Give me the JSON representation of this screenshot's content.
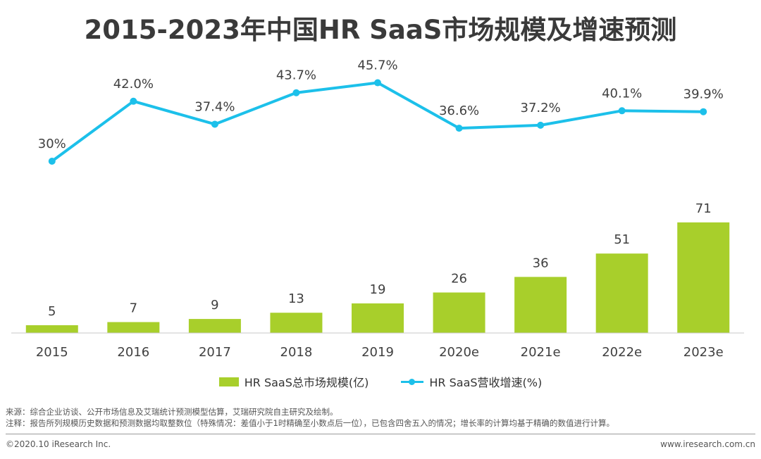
{
  "title": "2015-2023年中国HR SaaS市场规模及增速预测",
  "chart_data": {
    "type": "bar+line",
    "title": "2015-2023年中国HR SaaS市场规模及增速预测",
    "categories": [
      "2015",
      "2016",
      "2017",
      "2018",
      "2019",
      "2020e",
      "2021e",
      "2022e",
      "2023e"
    ],
    "series": [
      {
        "name": "HR SaaS总市场规模(亿)",
        "type": "bar",
        "values": [
          5,
          7,
          9,
          13,
          19,
          26,
          36,
          51,
          71
        ],
        "labels": [
          "5",
          "7",
          "9",
          "13",
          "19",
          "26",
          "36",
          "51",
          "71"
        ],
        "color": "#a8cf2b"
      },
      {
        "name": "HR SaaS营收增速(%)",
        "type": "line",
        "values": [
          30.0,
          42.0,
          37.4,
          43.7,
          45.7,
          36.6,
          37.2,
          40.1,
          39.9
        ],
        "labels": [
          "30%",
          "42.0%",
          "37.4%",
          "43.7%",
          "45.7%",
          "36.6%",
          "37.2%",
          "40.1%",
          "39.9%"
        ],
        "color": "#1cc0ea"
      }
    ],
    "bar_ylim": [
      0,
      80
    ],
    "line_ylim": [
      20,
      50
    ],
    "legend_position": "bottom"
  },
  "legend": {
    "bar_label": "HR SaaS总市场规模(亿)",
    "line_label": "HR SaaS营收增速(%)"
  },
  "notes": {
    "source": "来源：综合企业访谈、公开市场信息及艾瑞统计预测模型估算，艾瑞研究院自主研究及绘制。",
    "remark": "注释：报告所列规模历史数据和预测数据均取整数位（特殊情况：差值小于1时精确至小数点后一位），已包含四舍五入的情况；增长率的计算均基于精确的数值进行计算。"
  },
  "footer": {
    "copyright": "©2020.10 iResearch Inc.",
    "website": "www.iresearch.com.cn"
  }
}
